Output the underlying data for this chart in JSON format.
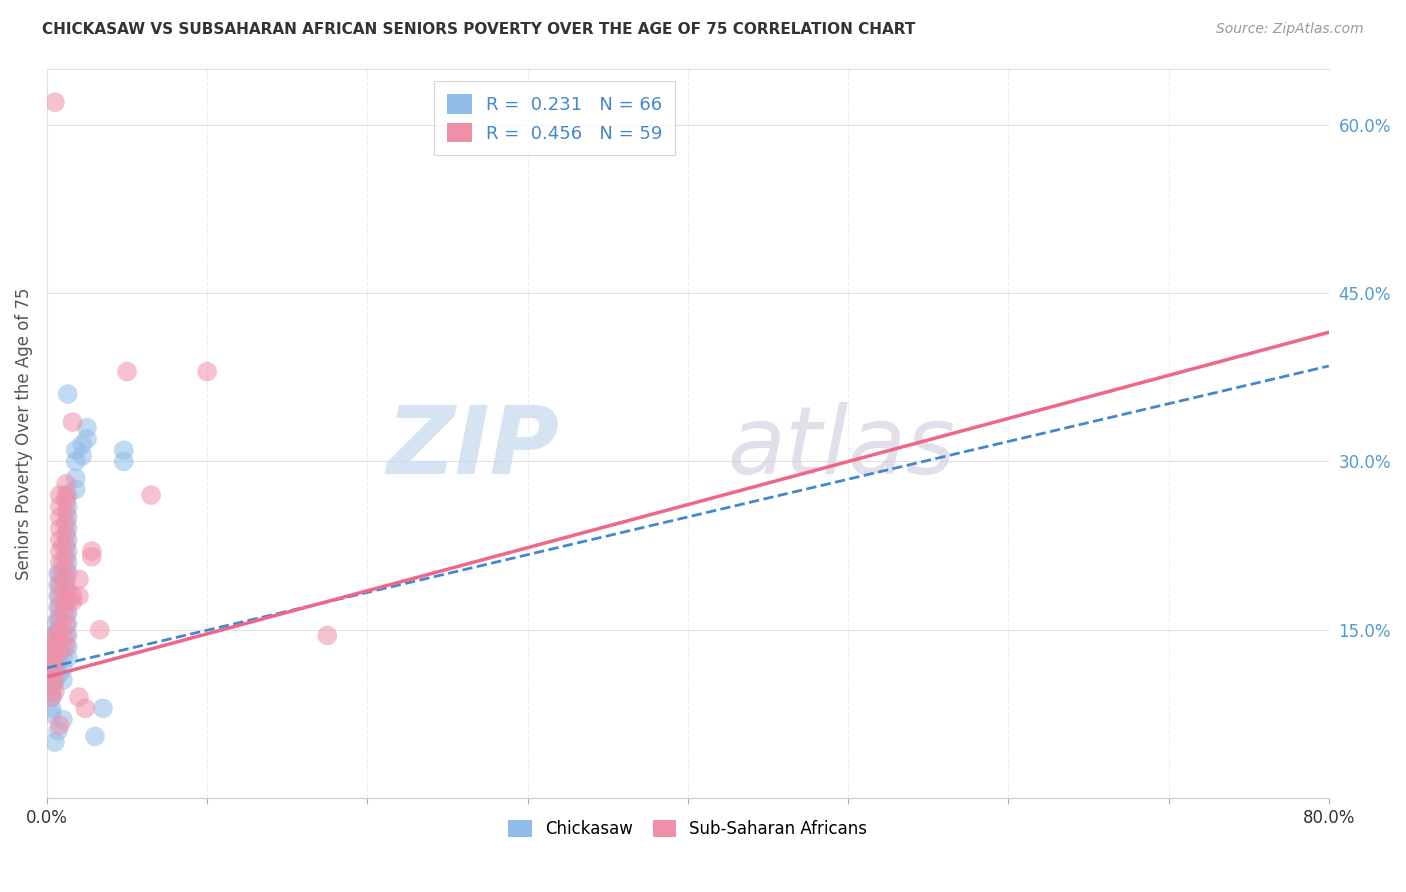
{
  "title": "CHICKASAW VS SUBSAHARAN AFRICAN SENIORS POVERTY OVER THE AGE OF 75 CORRELATION CHART",
  "source": "Source: ZipAtlas.com",
  "ylabel": "Seniors Poverty Over the Age of 75",
  "xlim": [
    0.0,
    0.8
  ],
  "ylim": [
    0.0,
    0.65
  ],
  "x_tick_pos": [
    0.0,
    0.1,
    0.2,
    0.3,
    0.4,
    0.5,
    0.6,
    0.7,
    0.8
  ],
  "x_tick_labels": [
    "0.0%",
    "",
    "",
    "",
    "",
    "",
    "",
    "",
    "80.0%"
  ],
  "y_ticks_right": [
    0.15,
    0.3,
    0.45,
    0.6
  ],
  "y_tick_labels_right": [
    "15.0%",
    "30.0%",
    "45.0%",
    "60.0%"
  ],
  "chickasaw_color": "#90bce8",
  "subsaharan_color": "#f090a8",
  "chickasaw_line_color": "#4488cc",
  "subsaharan_line_color": "#ee6688",
  "legend_chick_color": "#90bce8",
  "legend_sub_color": "#f090a8",
  "legend_R1": "0.231",
  "legend_N1": "66",
  "legend_R2": "0.456",
  "legend_N2": "59",
  "background_color": "#ffffff",
  "grid_color": "#e0e0e0",
  "regression_chickasaw": [
    0.0,
    0.116,
    0.8,
    0.385
  ],
  "regression_subsaharan": [
    0.0,
    0.108,
    0.8,
    0.415
  ],
  "chickasaw_scatter": [
    [
      0.003,
      0.13
    ],
    [
      0.003,
      0.12
    ],
    [
      0.003,
      0.11
    ],
    [
      0.003,
      0.105
    ],
    [
      0.003,
      0.095
    ],
    [
      0.003,
      0.09
    ],
    [
      0.003,
      0.08
    ],
    [
      0.003,
      0.075
    ],
    [
      0.005,
      0.155
    ],
    [
      0.005,
      0.145
    ],
    [
      0.005,
      0.135
    ],
    [
      0.005,
      0.125
    ],
    [
      0.005,
      0.115
    ],
    [
      0.005,
      0.105
    ],
    [
      0.007,
      0.2
    ],
    [
      0.007,
      0.19
    ],
    [
      0.007,
      0.18
    ],
    [
      0.007,
      0.17
    ],
    [
      0.007,
      0.16
    ],
    [
      0.007,
      0.15
    ],
    [
      0.007,
      0.14
    ],
    [
      0.007,
      0.13
    ],
    [
      0.007,
      0.12
    ],
    [
      0.007,
      0.11
    ],
    [
      0.01,
      0.225
    ],
    [
      0.01,
      0.21
    ],
    [
      0.01,
      0.2
    ],
    [
      0.01,
      0.19
    ],
    [
      0.01,
      0.175
    ],
    [
      0.01,
      0.165
    ],
    [
      0.01,
      0.155
    ],
    [
      0.01,
      0.145
    ],
    [
      0.01,
      0.135
    ],
    [
      0.01,
      0.125
    ],
    [
      0.01,
      0.115
    ],
    [
      0.01,
      0.105
    ],
    [
      0.013,
      0.36
    ],
    [
      0.013,
      0.27
    ],
    [
      0.013,
      0.26
    ],
    [
      0.013,
      0.25
    ],
    [
      0.013,
      0.24
    ],
    [
      0.013,
      0.23
    ],
    [
      0.013,
      0.22
    ],
    [
      0.013,
      0.21
    ],
    [
      0.013,
      0.2
    ],
    [
      0.013,
      0.185
    ],
    [
      0.013,
      0.175
    ],
    [
      0.013,
      0.165
    ],
    [
      0.013,
      0.155
    ],
    [
      0.013,
      0.145
    ],
    [
      0.013,
      0.135
    ],
    [
      0.013,
      0.125
    ],
    [
      0.018,
      0.31
    ],
    [
      0.018,
      0.3
    ],
    [
      0.018,
      0.285
    ],
    [
      0.018,
      0.275
    ],
    [
      0.022,
      0.315
    ],
    [
      0.022,
      0.305
    ],
    [
      0.025,
      0.33
    ],
    [
      0.025,
      0.32
    ],
    [
      0.03,
      0.055
    ],
    [
      0.035,
      0.08
    ],
    [
      0.048,
      0.31
    ],
    [
      0.048,
      0.3
    ],
    [
      0.005,
      0.05
    ],
    [
      0.007,
      0.06
    ],
    [
      0.01,
      0.07
    ]
  ],
  "subsaharan_scatter": [
    [
      0.003,
      0.14
    ],
    [
      0.003,
      0.13
    ],
    [
      0.003,
      0.12
    ],
    [
      0.003,
      0.11
    ],
    [
      0.003,
      0.1
    ],
    [
      0.003,
      0.09
    ],
    [
      0.005,
      0.145
    ],
    [
      0.005,
      0.135
    ],
    [
      0.005,
      0.125
    ],
    [
      0.005,
      0.115
    ],
    [
      0.005,
      0.105
    ],
    [
      0.005,
      0.095
    ],
    [
      0.005,
      0.62
    ],
    [
      0.008,
      0.27
    ],
    [
      0.008,
      0.26
    ],
    [
      0.008,
      0.25
    ],
    [
      0.008,
      0.24
    ],
    [
      0.008,
      0.23
    ],
    [
      0.008,
      0.22
    ],
    [
      0.008,
      0.21
    ],
    [
      0.008,
      0.2
    ],
    [
      0.008,
      0.19
    ],
    [
      0.008,
      0.18
    ],
    [
      0.008,
      0.17
    ],
    [
      0.008,
      0.16
    ],
    [
      0.008,
      0.15
    ],
    [
      0.008,
      0.14
    ],
    [
      0.008,
      0.13
    ],
    [
      0.012,
      0.28
    ],
    [
      0.012,
      0.27
    ],
    [
      0.012,
      0.265
    ],
    [
      0.012,
      0.255
    ],
    [
      0.012,
      0.245
    ],
    [
      0.012,
      0.235
    ],
    [
      0.012,
      0.225
    ],
    [
      0.012,
      0.215
    ],
    [
      0.012,
      0.205
    ],
    [
      0.012,
      0.195
    ],
    [
      0.012,
      0.185
    ],
    [
      0.012,
      0.175
    ],
    [
      0.012,
      0.165
    ],
    [
      0.012,
      0.155
    ],
    [
      0.012,
      0.145
    ],
    [
      0.012,
      0.135
    ],
    [
      0.016,
      0.335
    ],
    [
      0.016,
      0.18
    ],
    [
      0.016,
      0.175
    ],
    [
      0.02,
      0.195
    ],
    [
      0.02,
      0.18
    ],
    [
      0.024,
      0.08
    ],
    [
      0.028,
      0.22
    ],
    [
      0.028,
      0.215
    ],
    [
      0.033,
      0.15
    ],
    [
      0.05,
      0.38
    ],
    [
      0.065,
      0.27
    ],
    [
      0.175,
      0.145
    ],
    [
      0.1,
      0.38
    ],
    [
      0.02,
      0.09
    ],
    [
      0.008,
      0.065
    ]
  ],
  "watermark_zip_color": "#c5d8ee",
  "watermark_atlas_color": "#d0c8dc"
}
